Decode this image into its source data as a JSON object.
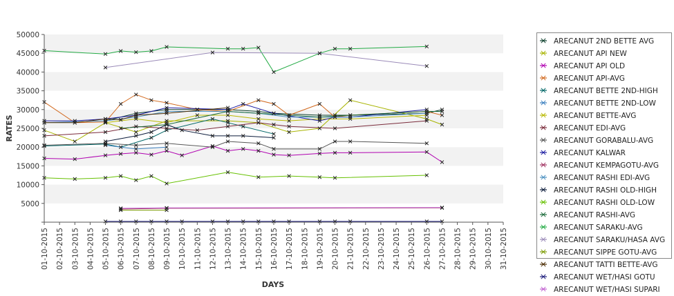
{
  "chart_data": {
    "type": "line",
    "xlabel": "DAYS",
    "ylabel": "RATES",
    "ylim": [
      0,
      50000
    ],
    "yticks": [
      5000,
      10000,
      15000,
      20000,
      25000,
      30000,
      35000,
      40000,
      45000,
      50000
    ],
    "x_ticks": [
      "01-10-2015",
      "02-10-2015",
      "03-10-2015",
      "04-10-2015",
      "05-10-2015",
      "06-10-2015",
      "07-10-2015",
      "08-10-2015",
      "09-10-2015",
      "10-10-2015",
      "11-10-2015",
      "12-10-2015",
      "13-10-2015",
      "14-10-2015",
      "15-10-2015",
      "16-10-2015",
      "17-10-2015",
      "18-10-2015",
      "19-10-2015",
      "20-10-2015",
      "21-10-2015",
      "22-10-2015",
      "23-10-2015",
      "24-10-2015",
      "25-10-2015",
      "26-10-2015",
      "27-10-2015",
      "28-10-2015",
      "29-10-2015",
      "30-10-2015",
      "31-10-2015"
    ],
    "grid": "horizontal bands",
    "legend_position": "right",
    "series": [
      {
        "name": "ARECANUT 2ND BETTE AVG",
        "color": "#0a3d2a",
        "points": [
          [
            "05-10-2015",
            27000
          ],
          [
            "07-10-2015",
            29000
          ],
          [
            "09-10-2015",
            30000
          ],
          [
            "11-10-2015",
            30000
          ],
          [
            "13-10-2015",
            30000
          ],
          [
            "15-10-2015",
            29500
          ],
          [
            "16-10-2015",
            29000
          ],
          [
            "19-10-2015",
            28500
          ],
          [
            "20-10-2015",
            28500
          ],
          [
            "21-10-2015",
            28500
          ],
          [
            "26-10-2015",
            29000
          ],
          [
            "27-10-2015",
            30000
          ]
        ]
      },
      {
        "name": "ARECANUT API NEW",
        "color": "#a8b400",
        "points": [
          [
            "01-10-2015",
            24500
          ],
          [
            "03-10-2015",
            21500
          ],
          [
            "05-10-2015",
            26500
          ],
          [
            "07-10-2015",
            24000
          ],
          [
            "09-10-2015",
            27000
          ],
          [
            "13-10-2015",
            27000
          ],
          [
            "15-10-2015",
            26500
          ],
          [
            "17-10-2015",
            24000
          ],
          [
            "19-10-2015",
            25000
          ],
          [
            "21-10-2015",
            32500
          ],
          [
            "26-10-2015",
            27500
          ],
          [
            "27-10-2015",
            26000
          ]
        ]
      },
      {
        "name": "ARECANUT API OLD",
        "color": "#b000b0",
        "points": [
          [
            "01-10-2015",
            17000
          ],
          [
            "03-10-2015",
            16800
          ],
          [
            "05-10-2015",
            17800
          ],
          [
            "06-10-2015",
            18200
          ],
          [
            "07-10-2015",
            18500
          ],
          [
            "08-10-2015",
            18000
          ],
          [
            "09-10-2015",
            19000
          ],
          [
            "10-10-2015",
            17800
          ],
          [
            "12-10-2015",
            20300
          ],
          [
            "13-10-2015",
            19000
          ],
          [
            "14-10-2015",
            19500
          ],
          [
            "15-10-2015",
            19000
          ],
          [
            "16-10-2015",
            18000
          ],
          [
            "17-10-2015",
            17800
          ],
          [
            "19-10-2015",
            18300
          ],
          [
            "20-10-2015",
            18500
          ],
          [
            "21-10-2015",
            18500
          ],
          [
            "26-10-2015",
            18700
          ],
          [
            "27-10-2015",
            16000
          ]
        ]
      },
      {
        "name": "ARECANUT API-AVG",
        "color": "#d2691e",
        "points": [
          [
            "01-10-2015",
            32000
          ],
          [
            "03-10-2015",
            26500
          ],
          [
            "05-10-2015",
            26700
          ],
          [
            "06-10-2015",
            31500
          ],
          [
            "07-10-2015",
            34000
          ],
          [
            "08-10-2015",
            32500
          ],
          [
            "09-10-2015",
            31800
          ],
          [
            "11-10-2015",
            30000
          ],
          [
            "13-10-2015",
            29500
          ],
          [
            "15-10-2015",
            32500
          ],
          [
            "16-10-2015",
            31500
          ],
          [
            "17-10-2015",
            28500
          ],
          [
            "19-10-2015",
            31500
          ],
          [
            "20-10-2015",
            28000
          ],
          [
            "21-10-2015",
            28500
          ],
          [
            "26-10-2015",
            29500
          ],
          [
            "27-10-2015",
            28500
          ]
        ]
      },
      {
        "name": "ARECANUT BETTE 2ND-HIGH",
        "color": "#006666",
        "points": [
          [
            "01-10-2015",
            20300
          ],
          [
            "05-10-2015",
            20800
          ],
          [
            "06-10-2015",
            20000
          ],
          [
            "08-10-2015",
            22500
          ],
          [
            "09-10-2015",
            24500
          ],
          [
            "12-10-2015",
            27500
          ],
          [
            "13-10-2015",
            26500
          ],
          [
            "14-10-2015",
            25500
          ],
          [
            "16-10-2015",
            23500
          ]
        ]
      },
      {
        "name": "ARECANUT BETTE 2ND-LOW",
        "color": "#3a7fbf",
        "points": [
          [
            "05-10-2015",
            20500
          ],
          [
            "07-10-2015",
            19500
          ],
          [
            "09-10-2015",
            20000
          ]
        ]
      },
      {
        "name": "ARECANUT BETTE-AVG",
        "color": "#b8b800",
        "points": [
          [
            "05-10-2015",
            26500
          ],
          [
            "07-10-2015",
            27500
          ],
          [
            "09-10-2015",
            26500
          ],
          [
            "11-10-2015",
            28500
          ],
          [
            "13-10-2015",
            28500
          ],
          [
            "15-10-2015",
            27500
          ],
          [
            "17-10-2015",
            27000
          ],
          [
            "19-10-2015",
            27500
          ],
          [
            "21-10-2015",
            27500
          ],
          [
            "26-10-2015",
            28500
          ]
        ]
      },
      {
        "name": "ARECANUT EDI-AVG",
        "color": "#7a2a3a",
        "points": [
          [
            "01-10-2015",
            23000
          ],
          [
            "05-10-2015",
            24000
          ],
          [
            "07-10-2015",
            25500
          ],
          [
            "09-10-2015",
            25000
          ],
          [
            "11-10-2015",
            24500
          ],
          [
            "13-10-2015",
            25500
          ],
          [
            "15-10-2015",
            26500
          ],
          [
            "16-10-2015",
            26000
          ],
          [
            "17-10-2015",
            25500
          ],
          [
            "20-10-2015",
            25000
          ],
          [
            "26-10-2015",
            27000
          ]
        ]
      },
      {
        "name": "ARECANUT GORABALU-AVG",
        "color": "#555555",
        "points": [
          [
            "01-10-2015",
            20500
          ],
          [
            "05-10-2015",
            21000
          ],
          [
            "07-10-2015",
            20500
          ],
          [
            "09-10-2015",
            21000
          ],
          [
            "12-10-2015",
            20000
          ],
          [
            "13-10-2015",
            21500
          ],
          [
            "15-10-2015",
            21000
          ],
          [
            "16-10-2015",
            19500
          ],
          [
            "19-10-2015",
            19500
          ],
          [
            "20-10-2015",
            21500
          ],
          [
            "21-10-2015",
            21500
          ],
          [
            "26-10-2015",
            21000
          ]
        ]
      },
      {
        "name": "ARECANUT KALWAR",
        "color": "#1a1aa0",
        "points": [
          [
            "01-10-2015",
            27000
          ],
          [
            "03-10-2015",
            27000
          ],
          [
            "05-10-2015",
            27500
          ],
          [
            "07-10-2015",
            28500
          ],
          [
            "09-10-2015",
            30500
          ],
          [
            "13-10-2015",
            30000
          ],
          [
            "14-10-2015",
            31500
          ],
          [
            "16-10-2015",
            29000
          ],
          [
            "19-10-2015",
            27000
          ],
          [
            "20-10-2015",
            28000
          ],
          [
            "21-10-2015",
            28000
          ],
          [
            "26-10-2015",
            30000
          ]
        ]
      },
      {
        "name": "ARECANUT KEMPAGOTU-AVG",
        "color": "#a03060",
        "points": [
          [
            "06-10-2015",
            3500
          ],
          [
            "09-10-2015",
            3700
          ],
          [
            "27-10-2015",
            3800
          ]
        ]
      },
      {
        "name": "ARECANUT RASHI EDI-AVG",
        "color": "#4a90c0",
        "points": [
          [
            "01-10-2015",
            26500
          ],
          [
            "05-10-2015",
            27000
          ],
          [
            "07-10-2015",
            28000
          ],
          [
            "09-10-2015",
            29500
          ],
          [
            "13-10-2015",
            29500
          ],
          [
            "15-10-2015",
            29000
          ],
          [
            "17-10-2015",
            28000
          ],
          [
            "19-10-2015",
            28000
          ],
          [
            "21-10-2015",
            28000
          ],
          [
            "26-10-2015",
            29000
          ]
        ]
      },
      {
        "name": "ARECANUT RASHI OLD-HIGH",
        "color": "#0a1a3a",
        "points": [
          [
            "05-10-2015",
            21500
          ],
          [
            "07-10-2015",
            23000
          ],
          [
            "08-10-2015",
            24000
          ],
          [
            "09-10-2015",
            26000
          ],
          [
            "10-10-2015",
            24500
          ],
          [
            "12-10-2015",
            23000
          ],
          [
            "13-10-2015",
            23000
          ],
          [
            "14-10-2015",
            23000
          ],
          [
            "16-10-2015",
            22500
          ]
        ]
      },
      {
        "name": "ARECANUT RASHI OLD-LOW",
        "color": "#66c000",
        "points": [
          [
            "01-10-2015",
            11800
          ],
          [
            "03-10-2015",
            11500
          ],
          [
            "05-10-2015",
            11800
          ],
          [
            "06-10-2015",
            12300
          ],
          [
            "07-10-2015",
            11200
          ],
          [
            "08-10-2015",
            12300
          ],
          [
            "09-10-2015",
            10300
          ],
          [
            "13-10-2015",
            13300
          ],
          [
            "15-10-2015",
            12000
          ],
          [
            "17-10-2015",
            12300
          ],
          [
            "19-10-2015",
            12000
          ],
          [
            "20-10-2015",
            11800
          ],
          [
            "26-10-2015",
            12500
          ]
        ]
      },
      {
        "name": "ARECANUT RASHI-AVG",
        "color": "#1a6a3a",
        "points": [
          [
            "06-10-2015",
            25000
          ],
          [
            "09-10-2015",
            26000
          ],
          [
            "13-10-2015",
            29500
          ],
          [
            "15-10-2015",
            29000
          ],
          [
            "19-10-2015",
            28000
          ],
          [
            "21-10-2015",
            28500
          ],
          [
            "26-10-2015",
            29500
          ],
          [
            "27-10-2015",
            29500
          ]
        ]
      },
      {
        "name": "ARECANUT SARAKU-AVG",
        "color": "#22aa44",
        "points": [
          [
            "01-10-2015",
            45700
          ],
          [
            "05-10-2015",
            44800
          ],
          [
            "06-10-2015",
            45600
          ],
          [
            "07-10-2015",
            45300
          ],
          [
            "08-10-2015",
            45600
          ],
          [
            "09-10-2015",
            46700
          ],
          [
            "13-10-2015",
            46200
          ],
          [
            "14-10-2015",
            46200
          ],
          [
            "15-10-2015",
            46500
          ],
          [
            "16-10-2015",
            40000
          ],
          [
            "19-10-2015",
            45000
          ],
          [
            "20-10-2015",
            46200
          ],
          [
            "21-10-2015",
            46200
          ],
          [
            "26-10-2015",
            46800
          ]
        ]
      },
      {
        "name": "ARECANUT SARAKU/HASA AVG",
        "color": "#9a8ab8",
        "points": [
          [
            "05-10-2015",
            41200
          ],
          [
            "12-10-2015",
            45200
          ],
          [
            "19-10-2015",
            45000
          ],
          [
            "26-10-2015",
            41600
          ]
        ]
      },
      {
        "name": "ARECANUT SIPPE GOTU-AVG",
        "color": "#7a9a00",
        "points": [
          [
            "06-10-2015",
            3200
          ],
          [
            "09-10-2015",
            3200
          ]
        ]
      },
      {
        "name": "ARECANUT TATTI BETTE-AVG",
        "color": "#4a2a00",
        "points": [
          [
            "01-10-2015",
            26500
          ],
          [
            "03-10-2015",
            26500
          ],
          [
            "05-10-2015",
            27500
          ],
          [
            "06-10-2015",
            27300
          ],
          [
            "07-10-2015",
            28500
          ],
          [
            "09-10-2015",
            29000
          ],
          [
            "13-10-2015",
            30500
          ]
        ]
      },
      {
        "name": "ARECANUT WET/HASI GOTU",
        "color": "#1a1a7a",
        "points": [
          [
            "05-10-2015",
            200
          ],
          [
            "06-10-2015",
            200
          ],
          [
            "07-10-2015",
            200
          ],
          [
            "08-10-2015",
            200
          ],
          [
            "09-10-2015",
            200
          ],
          [
            "10-10-2015",
            200
          ],
          [
            "12-10-2015",
            200
          ],
          [
            "13-10-2015",
            200
          ],
          [
            "14-10-2015",
            200
          ],
          [
            "15-10-2015",
            200
          ],
          [
            "16-10-2015",
            200
          ],
          [
            "17-10-2015",
            200
          ],
          [
            "19-10-2015",
            200
          ],
          [
            "20-10-2015",
            200
          ],
          [
            "21-10-2015",
            200
          ],
          [
            "26-10-2015",
            200
          ],
          [
            "27-10-2015",
            200
          ]
        ]
      },
      {
        "name": "ARECANUT WET/HASI SUPARI",
        "color": "#c060d0",
        "points": [
          [
            "06-10-2015",
            3700
          ],
          [
            "09-10-2015",
            3800
          ],
          [
            "27-10-2015",
            3900
          ]
        ]
      }
    ]
  }
}
